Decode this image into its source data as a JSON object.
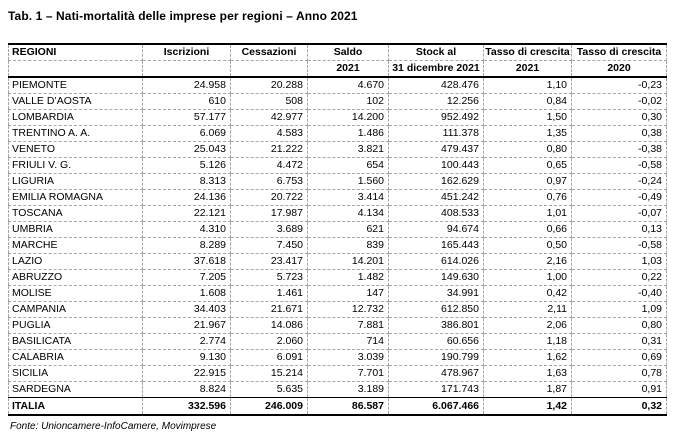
{
  "title": "Tab. 1 – Nati-mortalità delle imprese per regioni – Anno 2021",
  "source_note": "Fonte: Unioncamere-InfoCamere, Movimprese",
  "colors": {
    "background": "#ffffff",
    "text": "#000000",
    "solid_border": "#000000",
    "dashed_border": "#a6a6a6"
  },
  "table": {
    "columns": [
      {
        "key": "regioni",
        "line1": "REGIONI",
        "line2": ""
      },
      {
        "key": "iscrizioni",
        "line1": "Iscrizioni",
        "line2": ""
      },
      {
        "key": "cessazioni",
        "line1": "Cessazioni",
        "line2": ""
      },
      {
        "key": "saldo",
        "line1": "Saldo",
        "line2": "2021"
      },
      {
        "key": "stock",
        "line1": "Stock al",
        "line2": "31 dicembre 2021"
      },
      {
        "key": "tasso-2021",
        "line1": "Tasso di crescita",
        "line2": "2021"
      },
      {
        "key": "tasso-2020",
        "line1": "Tasso di crescita",
        "line2": "2020"
      }
    ],
    "rows": [
      [
        "PIEMONTE",
        "24.958",
        "20.288",
        "4.670",
        "428.476",
        "1,10",
        "-0,23"
      ],
      [
        "VALLE D’AOSTA",
        "610",
        "508",
        "102",
        "12.256",
        "0,84",
        "-0,02"
      ],
      [
        "LOMBARDIA",
        "57.177",
        "42.977",
        "14.200",
        "952.492",
        "1,50",
        "0,30"
      ],
      [
        "TRENTINO A. A.",
        "6.069",
        "4.583",
        "1.486",
        "111.378",
        "1,35",
        "0,38"
      ],
      [
        "VENETO",
        "25.043",
        "21.222",
        "3.821",
        "479.437",
        "0,80",
        "-0,38"
      ],
      [
        "FRIULI V. G.",
        "5.126",
        "4.472",
        "654",
        "100.443",
        "0,65",
        "-0,58"
      ],
      [
        "LIGURIA",
        "8.313",
        "6.753",
        "1.560",
        "162.629",
        "0,97",
        "-0,24"
      ],
      [
        "EMILIA ROMAGNA",
        "24.136",
        "20.722",
        "3.414",
        "451.242",
        "0,76",
        "-0,49"
      ],
      [
        "TOSCANA",
        "22.121",
        "17.987",
        "4.134",
        "408.533",
        "1,01",
        "-0,07"
      ],
      [
        "UMBRIA",
        "4.310",
        "3.689",
        "621",
        "94.674",
        "0,66",
        "0,13"
      ],
      [
        "MARCHE",
        "8.289",
        "7.450",
        "839",
        "165.443",
        "0,50",
        "-0,58"
      ],
      [
        "LAZIO",
        "37.618",
        "23.417",
        "14.201",
        "614.026",
        "2,16",
        "1,03"
      ],
      [
        "ABRUZZO",
        "7.205",
        "5.723",
        "1.482",
        "149.630",
        "1,00",
        "0,22"
      ],
      [
        "MOLISE",
        "1.608",
        "1.461",
        "147",
        "34.991",
        "0,42",
        "-0,40"
      ],
      [
        "CAMPANIA",
        "34.403",
        "21.671",
        "12.732",
        "612.850",
        "2,11",
        "1,09"
      ],
      [
        "PUGLIA",
        "21.967",
        "14.086",
        "7.881",
        "386.801",
        "2,06",
        "0,80"
      ],
      [
        "BASILICATA",
        "2.774",
        "2.060",
        "714",
        "60.656",
        "1,18",
        "0,31"
      ],
      [
        "CALABRIA",
        "9.130",
        "6.091",
        "3.039",
        "190.799",
        "1,62",
        "0,69"
      ],
      [
        "SICILIA",
        "22.915",
        "15.214",
        "7.701",
        "478.967",
        "1,63",
        "0,78"
      ],
      [
        "SARDEGNA",
        "8.824",
        "5.635",
        "3.189",
        "171.743",
        "1,87",
        "0,91"
      ]
    ],
    "total": [
      "ITALIA",
      "332.596",
      "246.009",
      "86.587",
      "6.067.466",
      "1,42",
      "0,32"
    ]
  }
}
